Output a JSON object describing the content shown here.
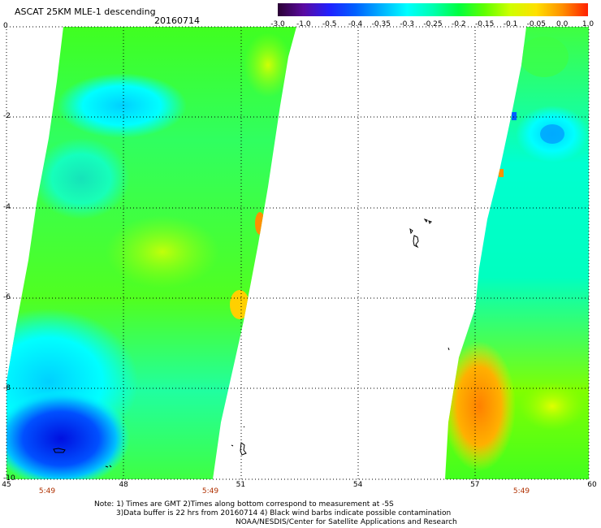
{
  "header": {
    "title": "ASCAT 25KM MLE-1 descending",
    "date": "20160714"
  },
  "colorbar": {
    "labels": [
      "-3.0",
      "-1.0",
      "-0.5",
      "-0.4",
      "-0.35",
      "-0.3",
      "-0.25",
      "-0.2",
      "-0.15",
      "-0.1",
      "-0.05",
      "0.0",
      "1.0"
    ],
    "colors": [
      "#2a0033",
      "#5a0aa0",
      "#2020ff",
      "#0060ff",
      "#00b0ff",
      "#00ffff",
      "#00ffb0",
      "#00ff40",
      "#60ff00",
      "#d0ff00",
      "#ffe000",
      "#ff9000",
      "#ff2000"
    ]
  },
  "axes": {
    "x_ticks": [
      "45",
      "48",
      "51",
      "54",
      "57",
      "60"
    ],
    "y_ticks": [
      "0",
      "-2",
      "-4",
      "-6",
      "-8",
      "-10"
    ],
    "x_range": [
      45,
      60
    ],
    "y_range": [
      0,
      -10
    ]
  },
  "pass_times": [
    "5:49",
    "5:49",
    "5:49"
  ],
  "notes": {
    "line1": "Note: 1) Times are GMT 2)Times along bottom correspond to measurement at -5S",
    "line2": "3)Data buffer is 22 hrs from 20160714 4) Black wind barbs indicate possible contamination",
    "line3": "NOAA/NESDIS/Center for Satellite Applications and Research"
  },
  "legend_icons": {
    "coastline": "coastline-icon"
  }
}
